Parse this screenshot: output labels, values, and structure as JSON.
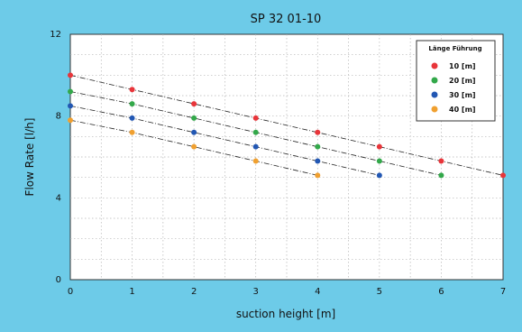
{
  "chart_data": {
    "type": "scatter",
    "title": "SP 32 01-10",
    "xlabel": "suction height [m]",
    "ylabel": "Flow Rate  [l/h]",
    "xlim": [
      0,
      7
    ],
    "ylim": [
      0,
      12
    ],
    "x_ticks": [
      "0",
      "1",
      "2",
      "3",
      "4",
      "5",
      "6",
      "7"
    ],
    "y_ticks": [
      "0",
      "4",
      "8",
      "12"
    ],
    "grid": true,
    "legend": {
      "title": "Länge Führung",
      "placement": "top-right"
    },
    "series": [
      {
        "name": "10  [m]",
        "color": "#e8353a",
        "x": [
          0,
          1,
          2,
          3,
          4,
          5,
          6,
          7
        ],
        "y": [
          10.0,
          9.3,
          8.6,
          7.9,
          7.2,
          6.5,
          5.8,
          5.1
        ]
      },
      {
        "name": "20  [m]",
        "color": "#33a84a",
        "x": [
          0,
          1,
          2,
          3,
          4,
          5,
          6
        ],
        "y": [
          9.2,
          8.6,
          7.9,
          7.2,
          6.5,
          5.8,
          5.1
        ]
      },
      {
        "name": "30  [m]",
        "color": "#2257b3",
        "x": [
          0,
          1,
          2,
          3,
          4,
          5
        ],
        "y": [
          8.5,
          7.9,
          7.2,
          6.5,
          5.8,
          5.1
        ]
      },
      {
        "name": "40  [m]",
        "color": "#f0a030",
        "x": [
          0,
          1,
          2,
          3,
          4
        ],
        "y": [
          7.8,
          7.2,
          6.5,
          5.8,
          5.1
        ]
      }
    ]
  }
}
